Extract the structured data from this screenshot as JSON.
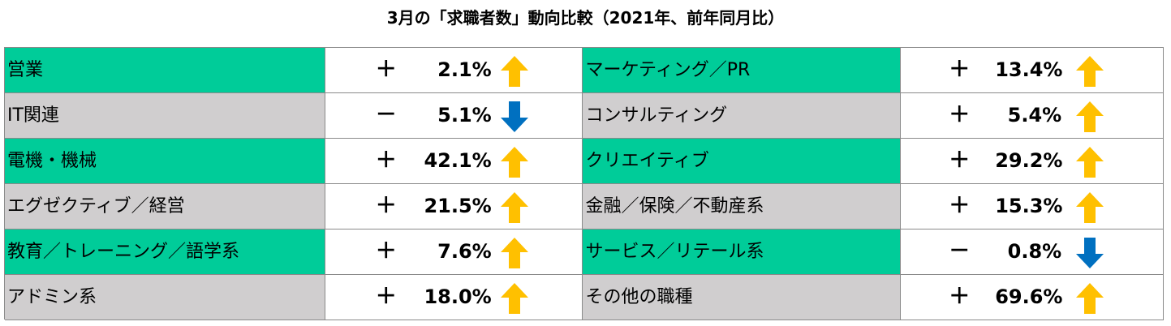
{
  "chart_data": {
    "type": "table",
    "title": "3月の「求職者数」動向比較（2021年、前年同月比）",
    "colors": {
      "green": "#00cc99",
      "gray": "#d0cecf",
      "up_arrow": "#ffc000",
      "down_arrow": "#0070c0"
    },
    "rows": [
      {
        "left": {
          "category": "営業",
          "sign": "＋",
          "value": "2.1%",
          "change": 2.1,
          "direction": "up",
          "bg": "green"
        },
        "right": {
          "category": "マーケティング／PR",
          "sign": "＋",
          "value": "13.4%",
          "change": 13.4,
          "direction": "up",
          "bg": "green"
        }
      },
      {
        "left": {
          "category": "IT関連",
          "sign": "－",
          "value": "5.1%",
          "change": -5.1,
          "direction": "down",
          "bg": "gray"
        },
        "right": {
          "category": "コンサルティング",
          "sign": "＋",
          "value": "5.4%",
          "change": 5.4,
          "direction": "up",
          "bg": "gray"
        }
      },
      {
        "left": {
          "category": "電機・機械",
          "sign": "＋",
          "value": "42.1%",
          "change": 42.1,
          "direction": "up",
          "bg": "green"
        },
        "right": {
          "category": "クリエイティブ",
          "sign": "＋",
          "value": "29.2%",
          "change": 29.2,
          "direction": "up",
          "bg": "green"
        }
      },
      {
        "left": {
          "category": "エグゼクティブ／経営",
          "sign": "＋",
          "value": "21.5%",
          "change": 21.5,
          "direction": "up",
          "bg": "gray"
        },
        "right": {
          "category": "金融／保険／不動産系",
          "sign": "＋",
          "value": "15.3%",
          "change": 15.3,
          "direction": "up",
          "bg": "gray"
        }
      },
      {
        "left": {
          "category": "教育／トレーニング／語学系",
          "sign": "＋",
          "value": "7.6%",
          "change": 7.6,
          "direction": "up",
          "bg": "green"
        },
        "right": {
          "category": "サービス／リテール系",
          "sign": "－",
          "value": "0.8%",
          "change": -0.8,
          "direction": "down",
          "bg": "green"
        }
      },
      {
        "left": {
          "category": "アドミン系",
          "sign": "＋",
          "value": "18.0%",
          "change": 18.0,
          "direction": "up",
          "bg": "gray"
        },
        "right": {
          "category": "その他の職種",
          "sign": "＋",
          "value": "69.6%",
          "change": 69.6,
          "direction": "up",
          "bg": "gray"
        }
      }
    ]
  }
}
